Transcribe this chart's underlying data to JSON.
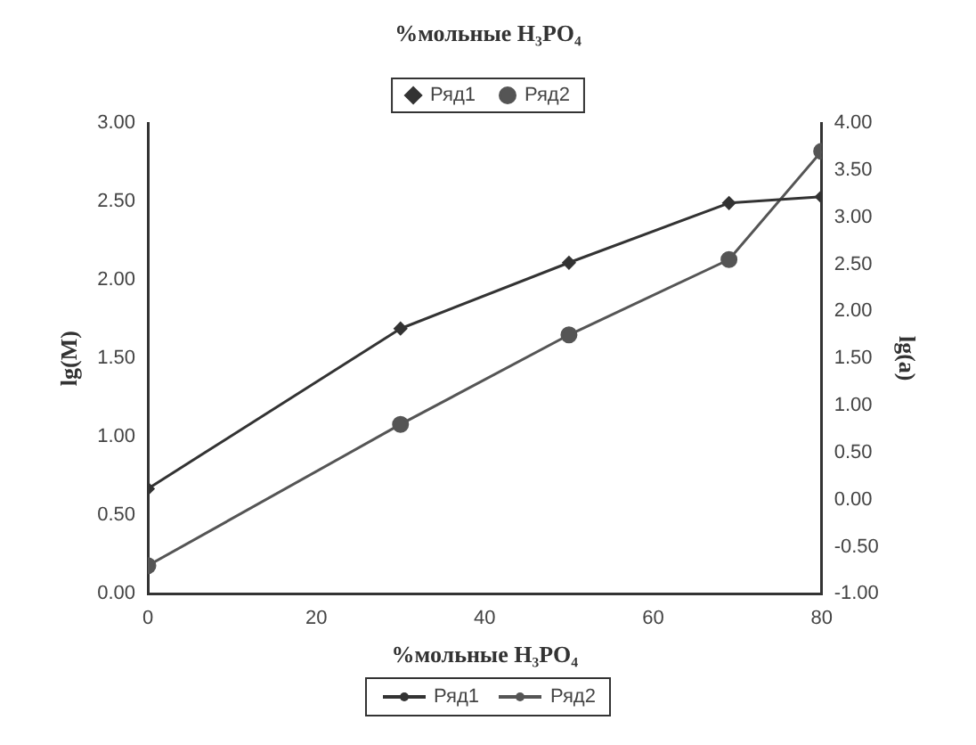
{
  "chart_data": {
    "type": "line",
    "title": "%мольные H₃PO₄",
    "xlabel": "%мольные H₃PO₄",
    "ylabel": "lg(M)",
    "y2label": "lg(a)",
    "x": [
      0,
      30,
      50,
      69,
      80
    ],
    "series": [
      {
        "name": "Ряд1",
        "color": "#333333",
        "values": [
          0.67,
          1.69,
          2.11,
          2.49,
          2.53
        ],
        "marker": "diamond"
      },
      {
        "name": "Ряд2",
        "color": "#555555",
        "values": [
          -0.7,
          0.8,
          1.75,
          2.55,
          3.7
        ],
        "axis": "y2",
        "marker": "circle"
      }
    ],
    "xlim": [
      0,
      80
    ],
    "xticks": [
      0,
      20,
      40,
      60,
      80
    ],
    "ylim": [
      0,
      3
    ],
    "yticks": [
      {
        "value": 0,
        "label": "0.00"
      },
      {
        "value": 0.5,
        "label": "0.50"
      },
      {
        "value": 1,
        "label": "1.00"
      },
      {
        "value": 1.5,
        "label": "1.50"
      },
      {
        "value": 2,
        "label": "2.00"
      },
      {
        "value": 2.5,
        "label": "2.50"
      },
      {
        "value": 3,
        "label": "3.00"
      }
    ],
    "y2lim": [
      -1,
      4
    ],
    "y2ticks": [
      {
        "value": -1,
        "label": "-1.00"
      },
      {
        "value": -0.5,
        "label": "-0.50"
      },
      {
        "value": 0,
        "label": "0.00"
      },
      {
        "value": 0.5,
        "label": "0.50"
      },
      {
        "value": 1,
        "label": "1.00"
      },
      {
        "value": 1.5,
        "label": "1.50"
      },
      {
        "value": 2,
        "label": "2.00"
      },
      {
        "value": 2.5,
        "label": "2.50"
      },
      {
        "value": 3,
        "label": "3.00"
      },
      {
        "value": 3.5,
        "label": "3.50"
      },
      {
        "value": 4,
        "label": "4.00"
      }
    ],
    "grid": false,
    "legend": "top",
    "line_style": "solid"
  }
}
